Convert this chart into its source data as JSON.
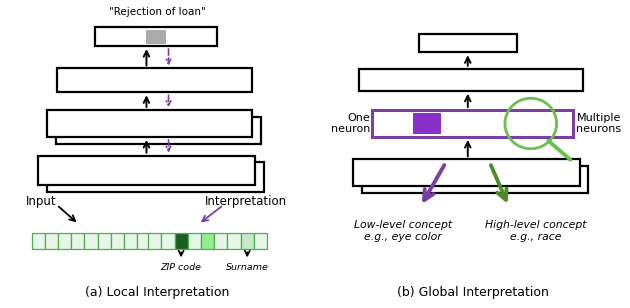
{
  "fig_width": 6.3,
  "fig_height": 3.08,
  "dpi": 100,
  "caption_a": "(a) Local Interpretation",
  "caption_b": "(b) Global Interpretation",
  "title_a": "\"Rejection of loan\"",
  "label_input": "Input",
  "label_interp": "Interpretation",
  "label_one_neuron": "One\nneuron",
  "label_multiple_neurons": "Multiple\nneurons",
  "label_zip": "ZIP code",
  "label_surname": "Surname",
  "label_low": "Low-level concept\ne.g., eye color",
  "label_high": "High-level concept\ne.g., race",
  "purple": "#7B3FA0",
  "dark_purple": "#7B3FA0",
  "green": "#6BBF4E",
  "dark_green": "#4A8C2A",
  "gray_cell": "#AAAAAA",
  "lw": 1.6
}
